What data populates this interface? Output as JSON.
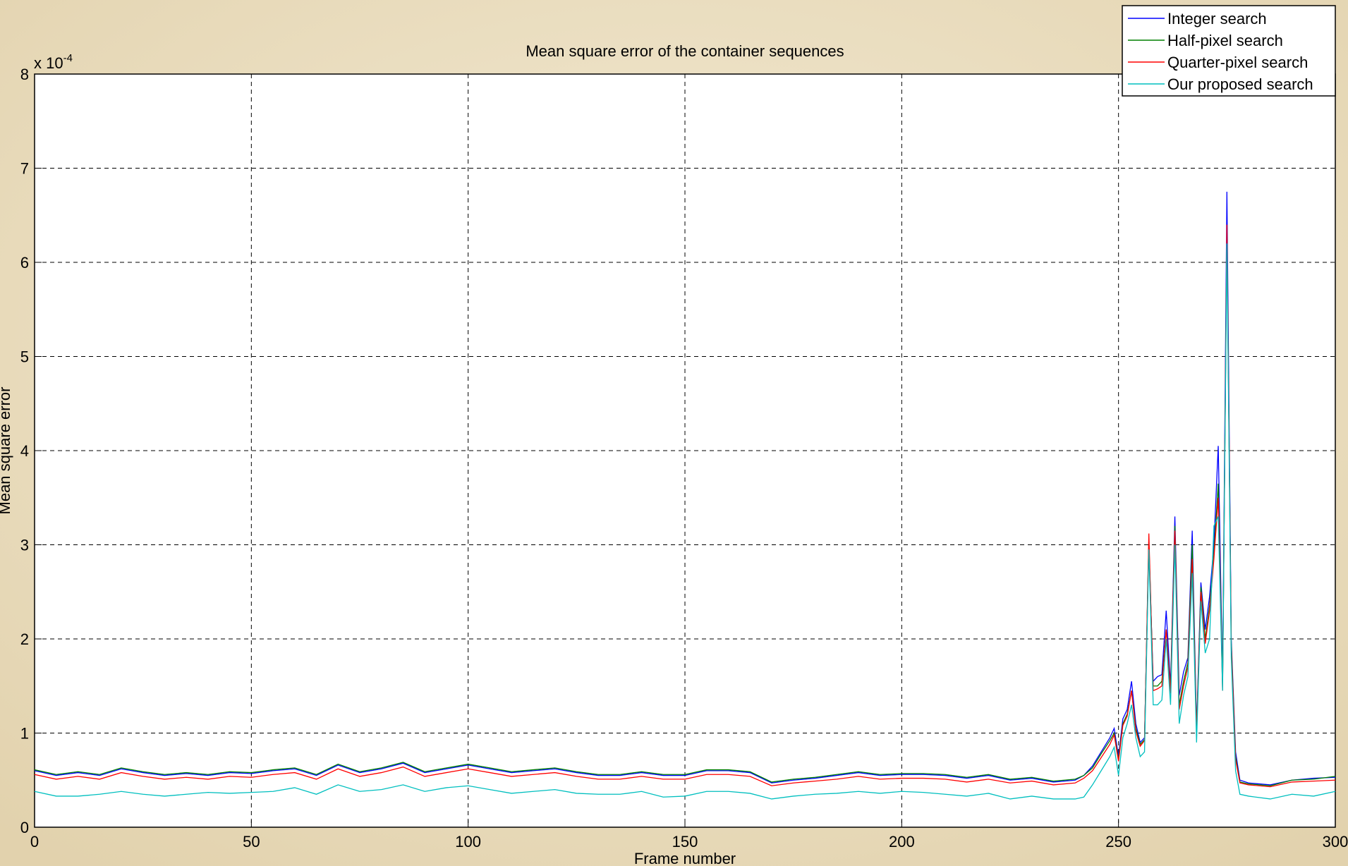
{
  "chart_data": {
    "type": "line",
    "title": "Mean square error of the container sequences",
    "x_label": "Frame number",
    "y_label": "Mean square error",
    "y_multiplier": {
      "base": "x 10",
      "exponent": "-4"
    },
    "x": [
      0,
      5,
      10,
      15,
      20,
      25,
      30,
      35,
      40,
      45,
      50,
      55,
      60,
      65,
      70,
      75,
      80,
      85,
      90,
      95,
      100,
      105,
      110,
      115,
      120,
      125,
      130,
      135,
      140,
      145,
      150,
      155,
      160,
      165,
      170,
      175,
      180,
      185,
      190,
      195,
      200,
      205,
      210,
      215,
      220,
      225,
      230,
      235,
      240,
      242,
      244,
      246,
      248,
      249,
      250,
      251,
      252,
      253,
      254,
      255,
      256,
      257,
      258,
      259,
      260,
      261,
      262,
      263,
      264,
      265,
      266,
      267,
      268,
      269,
      270,
      271,
      272,
      273,
      274,
      275,
      276,
      277,
      278,
      280,
      285,
      290,
      295,
      300
    ],
    "series": [
      {
        "name": "Integer search",
        "color": "#0000ff",
        "values": [
          0.6,
          0.55,
          0.58,
          0.55,
          0.62,
          0.58,
          0.55,
          0.57,
          0.55,
          0.58,
          0.57,
          0.6,
          0.62,
          0.55,
          0.66,
          0.58,
          0.62,
          0.68,
          0.58,
          0.62,
          0.66,
          0.62,
          0.58,
          0.6,
          0.62,
          0.58,
          0.55,
          0.55,
          0.58,
          0.55,
          0.55,
          0.6,
          0.6,
          0.58,
          0.47,
          0.5,
          0.52,
          0.55,
          0.58,
          0.55,
          0.56,
          0.56,
          0.55,
          0.52,
          0.55,
          0.5,
          0.52,
          0.48,
          0.5,
          0.55,
          0.65,
          0.8,
          0.95,
          1.05,
          0.75,
          1.15,
          1.25,
          1.55,
          1.1,
          0.9,
          0.95,
          3.0,
          1.55,
          1.6,
          1.62,
          2.3,
          1.5,
          3.3,
          1.4,
          1.65,
          1.8,
          3.15,
          1.05,
          2.6,
          2.1,
          2.45,
          3.0,
          4.05,
          1.55,
          6.75,
          2.0,
          0.8,
          0.5,
          0.47,
          0.45,
          0.5,
          0.52,
          0.53
        ]
      },
      {
        "name": "Half-pixel search",
        "color": "#008000",
        "values": [
          0.61,
          0.56,
          0.59,
          0.56,
          0.63,
          0.59,
          0.56,
          0.58,
          0.56,
          0.59,
          0.58,
          0.61,
          0.63,
          0.56,
          0.67,
          0.59,
          0.63,
          0.69,
          0.59,
          0.63,
          0.67,
          0.63,
          0.59,
          0.61,
          0.63,
          0.59,
          0.56,
          0.56,
          0.59,
          0.56,
          0.56,
          0.61,
          0.61,
          0.59,
          0.48,
          0.51,
          0.53,
          0.56,
          0.59,
          0.56,
          0.57,
          0.57,
          0.56,
          0.53,
          0.56,
          0.51,
          0.53,
          0.49,
          0.51,
          0.55,
          0.63,
          0.78,
          0.92,
          1.0,
          0.72,
          1.1,
          1.2,
          1.45,
          1.05,
          0.88,
          0.93,
          3.05,
          1.5,
          1.5,
          1.55,
          2.1,
          1.45,
          3.2,
          1.3,
          1.55,
          1.75,
          3.0,
          1.0,
          2.55,
          2.0,
          2.35,
          2.9,
          3.65,
          1.5,
          6.3,
          1.95,
          0.75,
          0.48,
          0.46,
          0.44,
          0.5,
          0.51,
          0.54
        ]
      },
      {
        "name": "Quarter-pixel search",
        "color": "#ff0000",
        "values": [
          0.56,
          0.51,
          0.54,
          0.51,
          0.58,
          0.54,
          0.51,
          0.53,
          0.51,
          0.54,
          0.53,
          0.56,
          0.58,
          0.51,
          0.62,
          0.54,
          0.58,
          0.64,
          0.54,
          0.58,
          0.62,
          0.58,
          0.54,
          0.56,
          0.58,
          0.54,
          0.51,
          0.51,
          0.54,
          0.51,
          0.51,
          0.56,
          0.56,
          0.54,
          0.44,
          0.47,
          0.49,
          0.51,
          0.54,
          0.51,
          0.52,
          0.52,
          0.51,
          0.48,
          0.51,
          0.47,
          0.49,
          0.45,
          0.47,
          0.52,
          0.6,
          0.74,
          0.88,
          0.98,
          0.7,
          1.08,
          1.18,
          1.45,
          1.02,
          0.86,
          0.92,
          3.12,
          1.45,
          1.47,
          1.5,
          2.1,
          1.42,
          3.15,
          1.25,
          1.5,
          1.7,
          2.85,
          1.0,
          2.5,
          1.95,
          2.3,
          2.85,
          3.5,
          1.45,
          6.4,
          1.9,
          0.72,
          0.47,
          0.45,
          0.43,
          0.48,
          0.49,
          0.5
        ]
      },
      {
        "name": "Our proposed search",
        "color": "#00bfbf",
        "values": [
          0.38,
          0.33,
          0.33,
          0.35,
          0.38,
          0.35,
          0.33,
          0.35,
          0.37,
          0.36,
          0.37,
          0.38,
          0.42,
          0.35,
          0.45,
          0.38,
          0.4,
          0.45,
          0.38,
          0.42,
          0.44,
          0.4,
          0.36,
          0.38,
          0.4,
          0.36,
          0.35,
          0.35,
          0.38,
          0.32,
          0.33,
          0.38,
          0.38,
          0.36,
          0.3,
          0.33,
          0.35,
          0.36,
          0.38,
          0.36,
          0.38,
          0.37,
          0.35,
          0.33,
          0.36,
          0.3,
          0.33,
          0.3,
          0.3,
          0.32,
          0.45,
          0.6,
          0.75,
          0.85,
          0.55,
          0.95,
          1.1,
          1.3,
          0.95,
          0.75,
          0.8,
          2.95,
          1.3,
          1.3,
          1.35,
          2.0,
          1.3,
          3.0,
          1.1,
          1.4,
          1.6,
          2.7,
          0.9,
          2.4,
          1.85,
          2.0,
          3.2,
          3.3,
          1.45,
          6.2,
          1.8,
          0.6,
          0.35,
          0.33,
          0.3,
          0.35,
          0.33,
          0.38
        ]
      }
    ],
    "xlim": [
      0,
      300
    ],
    "xticks": [
      0,
      50,
      100,
      150,
      200,
      250,
      300
    ],
    "ylim": [
      0,
      8
    ],
    "yticks": [
      0,
      1,
      2,
      3,
      4,
      5,
      6,
      7,
      8
    ],
    "grid": true,
    "legend": "top-right"
  }
}
